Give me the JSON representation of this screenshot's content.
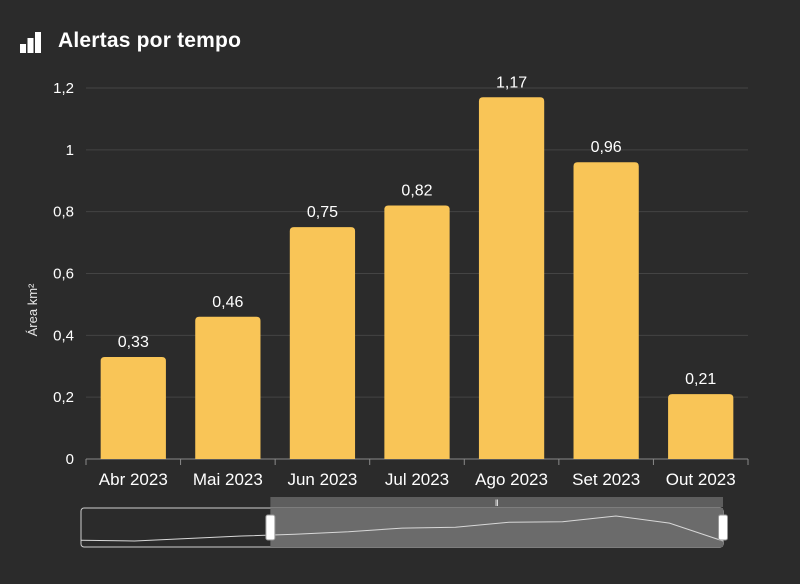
{
  "header": {
    "title": "Alertas por tempo",
    "icon": "bar-chart-icon"
  },
  "colors": {
    "background": "#2b2b2b",
    "bar": "#f9c557",
    "grid": "#444444",
    "axis": "#8a8a8a",
    "navigator_fill": "#6b6b6b",
    "navigator_line": "#d8d8d8"
  },
  "chart_data": {
    "type": "bar",
    "title": "Alertas por tempo",
    "xlabel": "",
    "ylabel": "Área km²",
    "categories": [
      "Abr 2023",
      "Mai 2023",
      "Jun 2023",
      "Jul 2023",
      "Ago 2023",
      "Set 2023",
      "Out 2023"
    ],
    "values": [
      0.33,
      0.46,
      0.75,
      0.82,
      1.17,
      0.96,
      0.21
    ],
    "value_labels": [
      "0,33",
      "0,46",
      "0,75",
      "0,82",
      "1,17",
      "0,96",
      "0,21"
    ],
    "ylim": [
      0,
      1.2
    ],
    "yticks": [
      0,
      0.2,
      0.4,
      0.6,
      0.8,
      1,
      1.2
    ],
    "ytick_labels": [
      "0",
      "0,2",
      "0,4",
      "0,6",
      "0,8",
      "1",
      "1,2"
    ],
    "grid": true,
    "legend": "none",
    "navigator": {
      "series_values": [
        0.02,
        0.0,
        0.06,
        0.12,
        0.16,
        0.22,
        0.31,
        0.33,
        0.45,
        0.46,
        0.6,
        0.43,
        0.0
      ],
      "selection_start_fraction": 0.295,
      "selection_end_fraction": 1.0
    }
  }
}
